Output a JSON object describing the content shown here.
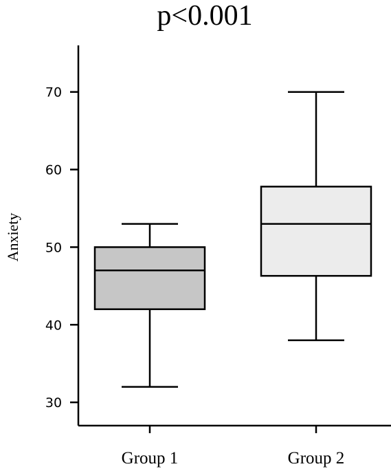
{
  "chart_data": {
    "type": "box",
    "title": "p<0.001",
    "ylabel": "Anxiety",
    "xlabel": "",
    "ylim": [
      27,
      76
    ],
    "yticks": [
      30,
      40,
      50,
      60,
      70
    ],
    "ytick_labels": [
      "30",
      "40",
      "50",
      "60",
      "70"
    ],
    "categories": [
      "Group 1",
      "Group 2"
    ],
    "boxes": [
      {
        "name": "Group 1",
        "min": 32,
        "q1": 42,
        "median": 47,
        "q3": 50,
        "max": 53,
        "color": "#c6c6c6"
      },
      {
        "name": "Group 2",
        "min": 38,
        "q1": 46.3,
        "median": 53,
        "q3": 57.8,
        "max": 70,
        "color": "#ececec"
      }
    ],
    "grid": false
  }
}
